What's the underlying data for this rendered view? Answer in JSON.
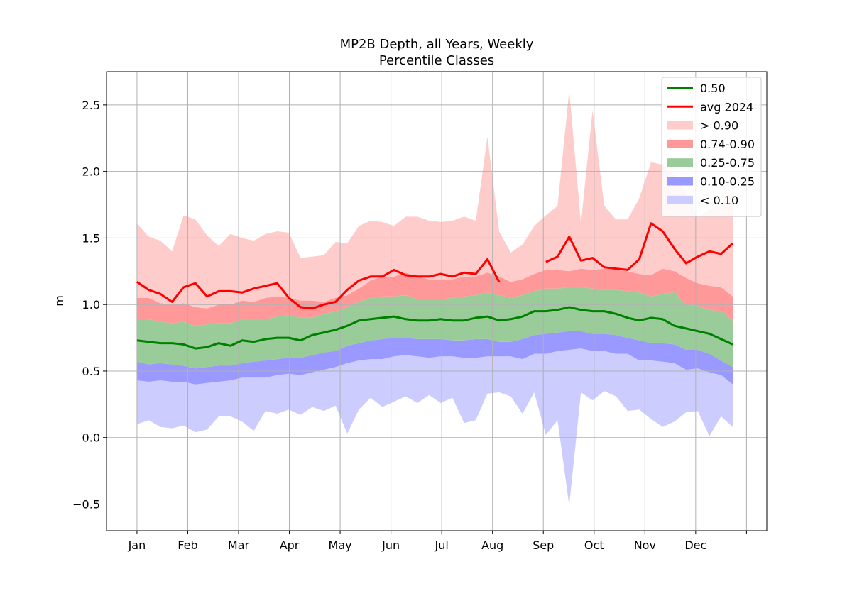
{
  "chart_data": {
    "type": "area",
    "title": "MP2B Depth, all Years, Weekly",
    "subtitle": "Percentile Classes",
    "xlabel": "",
    "ylabel": "m",
    "ylim": [
      -0.7,
      2.75
    ],
    "xlim": [
      -0.6,
      12.4
    ],
    "grid": true,
    "legend_position": "top-right",
    "month_ticks": [
      {
        "label": "Jan",
        "x": 0
      },
      {
        "label": "Feb",
        "x": 1
      },
      {
        "label": "Mar",
        "x": 2
      },
      {
        "label": "Apr",
        "x": 3
      },
      {
        "label": "May",
        "x": 4
      },
      {
        "label": "Jun",
        "x": 5
      },
      {
        "label": "Jul",
        "x": 6
      },
      {
        "label": "Aug",
        "x": 7
      },
      {
        "label": "Sep",
        "x": 8
      },
      {
        "label": "Oct",
        "x": 9
      },
      {
        "label": "Nov",
        "x": 10
      },
      {
        "label": "Dec",
        "x": 11
      },
      {
        "label": "",
        "x": 12
      }
    ],
    "y_ticks": [
      -0.5,
      0.0,
      0.5,
      1.0,
      1.5,
      2.0,
      2.5
    ],
    "y_tick_labels": [
      "−0.5",
      "0.0",
      "0.5",
      "1.0",
      "1.5",
      "2.0",
      "2.5"
    ],
    "legend": [
      {
        "label": "0.50",
        "kind": "line",
        "color": "#008000"
      },
      {
        "label": "avg 2024",
        "kind": "line",
        "color": "#ff0000"
      },
      {
        "label": "> 0.90",
        "kind": "patch",
        "color": "#ffcccc"
      },
      {
        "label": "0.74-0.90",
        "kind": "patch",
        "color": "#ff9999"
      },
      {
        "label": "0.25-0.75",
        "kind": "patch",
        "color": "#99cc99"
      },
      {
        "label": "0.10-0.25",
        "kind": "patch",
        "color": "#9999ff"
      },
      {
        "label": "< 0.10",
        "kind": "patch",
        "color": "#ccccff"
      }
    ],
    "x": [
      0.0,
      0.23,
      0.46,
      0.69,
      0.92,
      1.15,
      1.38,
      1.61,
      1.84,
      2.07,
      2.3,
      2.53,
      2.76,
      2.99,
      3.22,
      3.45,
      3.68,
      3.91,
      4.14,
      4.37,
      4.6,
      4.83,
      5.06,
      5.29,
      5.52,
      5.75,
      5.98,
      6.21,
      6.44,
      6.67,
      6.9,
      7.13,
      7.36,
      7.59,
      7.82,
      8.05,
      8.28,
      8.51,
      8.74,
      8.97,
      9.2,
      9.43,
      9.66,
      9.89,
      10.12,
      10.35,
      10.58,
      10.81,
      11.04,
      11.27,
      11.5,
      11.73
    ],
    "bands": {
      "min": [
        0.1,
        0.13,
        0.08,
        0.07,
        0.09,
        0.04,
        0.06,
        0.16,
        0.16,
        0.12,
        0.05,
        0.2,
        0.18,
        0.21,
        0.17,
        0.23,
        0.2,
        0.24,
        0.03,
        0.21,
        0.3,
        0.23,
        0.27,
        0.31,
        0.26,
        0.32,
        0.26,
        0.3,
        0.11,
        0.13,
        0.33,
        0.34,
        0.31,
        0.18,
        0.34,
        0.02,
        0.13,
        -0.51,
        0.34,
        0.28,
        0.35,
        0.31,
        0.2,
        0.21,
        0.14,
        0.08,
        0.12,
        0.19,
        0.2,
        0.01,
        0.16,
        0.08
      ],
      "p10": [
        0.43,
        0.42,
        0.43,
        0.42,
        0.42,
        0.4,
        0.41,
        0.42,
        0.43,
        0.45,
        0.45,
        0.45,
        0.47,
        0.48,
        0.47,
        0.49,
        0.51,
        0.53,
        0.56,
        0.58,
        0.59,
        0.59,
        0.61,
        0.62,
        0.61,
        0.6,
        0.61,
        0.61,
        0.6,
        0.6,
        0.61,
        0.61,
        0.61,
        0.59,
        0.63,
        0.63,
        0.65,
        0.66,
        0.67,
        0.65,
        0.65,
        0.63,
        0.63,
        0.58,
        0.58,
        0.57,
        0.56,
        0.51,
        0.52,
        0.49,
        0.47,
        0.4
      ],
      "p25": [
        0.57,
        0.55,
        0.56,
        0.55,
        0.54,
        0.52,
        0.53,
        0.54,
        0.54,
        0.56,
        0.57,
        0.58,
        0.59,
        0.6,
        0.6,
        0.62,
        0.64,
        0.65,
        0.69,
        0.71,
        0.73,
        0.74,
        0.75,
        0.75,
        0.74,
        0.74,
        0.74,
        0.73,
        0.73,
        0.74,
        0.74,
        0.72,
        0.72,
        0.74,
        0.77,
        0.78,
        0.79,
        0.8,
        0.8,
        0.78,
        0.78,
        0.77,
        0.75,
        0.73,
        0.71,
        0.71,
        0.7,
        0.66,
        0.66,
        0.63,
        0.58,
        0.53
      ],
      "p75": [
        0.89,
        0.89,
        0.87,
        0.86,
        0.87,
        0.84,
        0.85,
        0.86,
        0.86,
        0.89,
        0.89,
        0.89,
        0.91,
        0.92,
        0.9,
        0.9,
        0.93,
        0.95,
        0.98,
        1.02,
        1.05,
        1.06,
        1.06,
        1.07,
        1.04,
        1.04,
        1.04,
        1.05,
        1.06,
        1.07,
        1.09,
        1.07,
        1.05,
        1.07,
        1.1,
        1.12,
        1.12,
        1.13,
        1.13,
        1.12,
        1.11,
        1.11,
        1.1,
        1.09,
        1.06,
        1.08,
        1.09,
        1.0,
        0.99,
        0.96,
        0.95,
        0.88
      ],
      "p90": [
        1.05,
        1.05,
        1.01,
        1.0,
        1.01,
        0.98,
        0.97,
        1.0,
        1.0,
        1.03,
        1.02,
        1.05,
        1.06,
        1.05,
        1.03,
        1.03,
        1.02,
        1.05,
        1.07,
        1.12,
        1.18,
        1.21,
        1.21,
        1.24,
        1.21,
        1.19,
        1.19,
        1.19,
        1.21,
        1.21,
        1.24,
        1.21,
        1.17,
        1.19,
        1.23,
        1.26,
        1.26,
        1.25,
        1.27,
        1.26,
        1.27,
        1.26,
        1.25,
        1.23,
        1.22,
        1.27,
        1.25,
        1.2,
        1.16,
        1.14,
        1.13,
        1.06
      ],
      "max": [
        1.61,
        1.51,
        1.48,
        1.4,
        1.67,
        1.64,
        1.52,
        1.44,
        1.53,
        1.5,
        1.48,
        1.53,
        1.55,
        1.54,
        1.35,
        1.36,
        1.37,
        1.47,
        1.46,
        1.59,
        1.63,
        1.62,
        1.59,
        1.66,
        1.66,
        1.63,
        1.62,
        1.63,
        1.66,
        1.63,
        2.26,
        1.55,
        1.39,
        1.45,
        1.59,
        1.67,
        1.74,
        2.61,
        1.61,
        2.46,
        1.74,
        1.64,
        1.64,
        1.8,
        2.07,
        2.05,
        1.97,
        1.85,
        1.66,
        1.71,
        1.77,
        1.84
      ]
    },
    "series": [
      {
        "name": "0.50",
        "color": "#008000",
        "values": [
          0.73,
          0.72,
          0.71,
          0.71,
          0.7,
          0.67,
          0.68,
          0.71,
          0.69,
          0.73,
          0.72,
          0.74,
          0.75,
          0.75,
          0.73,
          0.77,
          0.79,
          0.81,
          0.84,
          0.88,
          0.89,
          0.9,
          0.91,
          0.89,
          0.88,
          0.88,
          0.89,
          0.88,
          0.88,
          0.9,
          0.91,
          0.88,
          0.89,
          0.91,
          0.95,
          0.95,
          0.96,
          0.98,
          0.96,
          0.95,
          0.95,
          0.93,
          0.9,
          0.88,
          0.9,
          0.89,
          0.84,
          0.82,
          0.8,
          0.78,
          0.74,
          0.7
        ]
      },
      {
        "name": "avg 2024",
        "color": "#ff0000",
        "values": [
          1.17,
          1.11,
          1.08,
          1.02,
          1.13,
          1.16,
          1.06,
          1.1,
          1.1,
          1.09,
          1.12,
          1.14,
          1.16,
          1.05,
          0.98,
          0.97,
          1.0,
          1.02,
          1.11,
          1.18,
          1.21,
          1.21,
          1.26,
          1.22,
          1.21,
          1.21,
          1.23,
          1.21,
          1.24,
          1.23,
          1.34,
          1.17,
          null,
          null,
          null,
          1.32,
          1.36,
          1.51,
          1.33,
          1.35,
          1.28,
          1.27,
          1.26,
          1.34,
          1.61,
          1.55,
          1.42,
          1.31,
          1.36,
          1.4,
          1.38,
          1.46
        ]
      }
    ]
  }
}
